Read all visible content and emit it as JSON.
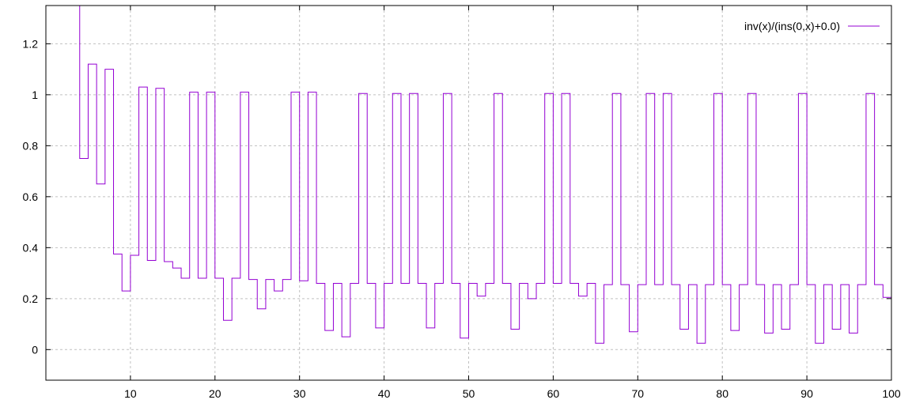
{
  "chart_data": {
    "type": "line",
    "step": true,
    "title": "",
    "xlabel": "",
    "ylabel": "",
    "xlim": [
      0,
      100
    ],
    "ylim": [
      -0.12,
      1.35
    ],
    "xticks": [
      10,
      20,
      30,
      40,
      50,
      60,
      70,
      80,
      90,
      100
    ],
    "xtick_labels": [
      "10",
      "20",
      "30",
      "40",
      "50",
      "60",
      "70",
      "80",
      "90",
      "100"
    ],
    "yticks": [
      0,
      0.2,
      0.4,
      0.6,
      0.8,
      1,
      1.2
    ],
    "ytick_labels": [
      "0",
      "0.2",
      "0.4",
      "0.6",
      "0.8",
      "1",
      "1.2"
    ],
    "grid": true,
    "legend_position": "top-right",
    "series": [
      {
        "name": "inv(x)/(ins(0,x)+0.0)",
        "color": "#9400d3",
        "x": [
          3,
          4,
          5,
          6,
          7,
          8,
          9,
          10,
          11,
          12,
          13,
          14,
          15,
          16,
          17,
          18,
          19,
          20,
          21,
          22,
          23,
          24,
          25,
          26,
          27,
          28,
          29,
          30,
          31,
          32,
          33,
          34,
          35,
          36,
          37,
          38,
          39,
          40,
          41,
          42,
          43,
          44,
          45,
          46,
          47,
          48,
          49,
          50,
          51,
          52,
          53,
          54,
          55,
          56,
          57,
          58,
          59,
          60,
          61,
          62,
          63,
          64,
          65,
          66,
          67,
          68,
          69,
          70,
          71,
          72,
          73,
          74,
          75,
          76,
          77,
          78,
          79,
          80,
          81,
          82,
          83,
          84,
          85,
          86,
          87,
          88,
          89,
          90,
          91,
          92,
          93,
          94,
          95,
          96,
          97,
          98,
          99
        ],
        "values": [
          1.5,
          0.75,
          1.12,
          0.65,
          1.1,
          0.375,
          0.23,
          0.37,
          1.03,
          0.35,
          1.025,
          0.345,
          0.32,
          0.28,
          1.01,
          0.28,
          1.01,
          0.28,
          0.115,
          0.28,
          1.01,
          0.275,
          0.16,
          0.275,
          0.23,
          0.275,
          1.01,
          0.27,
          1.01,
          0.26,
          0.075,
          0.26,
          0.05,
          0.26,
          1.005,
          0.26,
          0.085,
          0.26,
          1.005,
          0.26,
          1.005,
          0.26,
          0.085,
          0.26,
          1.005,
          0.26,
          0.045,
          0.26,
          0.21,
          0.26,
          1.005,
          0.26,
          0.08,
          0.26,
          0.2,
          0.26,
          1.005,
          0.26,
          1.005,
          0.26,
          0.21,
          0.26,
          0.025,
          0.255,
          1.005,
          0.255,
          0.07,
          0.255,
          1.005,
          0.255,
          1.005,
          0.255,
          0.08,
          0.255,
          0.025,
          0.255,
          1.005,
          0.255,
          0.075,
          0.255,
          1.005,
          0.255,
          0.065,
          0.255,
          0.08,
          0.255,
          1.005,
          0.255,
          0.025,
          0.255,
          0.08,
          0.255,
          0.065,
          0.255,
          1.005,
          0.255,
          0.205
        ]
      }
    ]
  }
}
